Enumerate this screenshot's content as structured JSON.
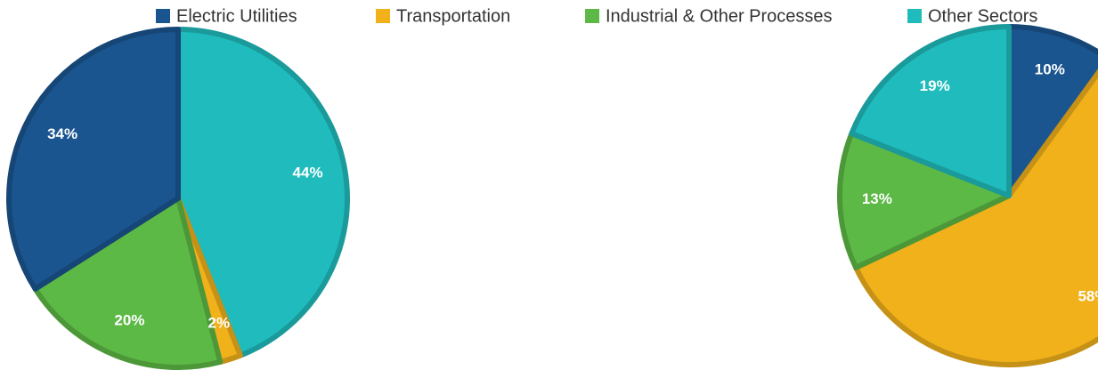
{
  "chart_data": [
    {
      "type": "pie",
      "categories": [
        "Other Sectors",
        "Transportation",
        "Industrial & Other Processes",
        "Electric Utilities"
      ],
      "values": [
        44,
        2,
        20,
        34
      ],
      "colors": [
        "#20bcbd",
        "#f0b11b",
        "#5db946",
        "#1a5590"
      ]
    },
    {
      "type": "pie",
      "categories": [
        "Electric Utilities",
        "Transportation",
        "Industrial & Other Processes",
        "Other Sectors"
      ],
      "values": [
        10,
        58,
        13,
        19
      ],
      "colors": [
        "#1a5590",
        "#f0b11b",
        "#5db946",
        "#20bcbd"
      ],
      "legend": "top"
    }
  ]
}
